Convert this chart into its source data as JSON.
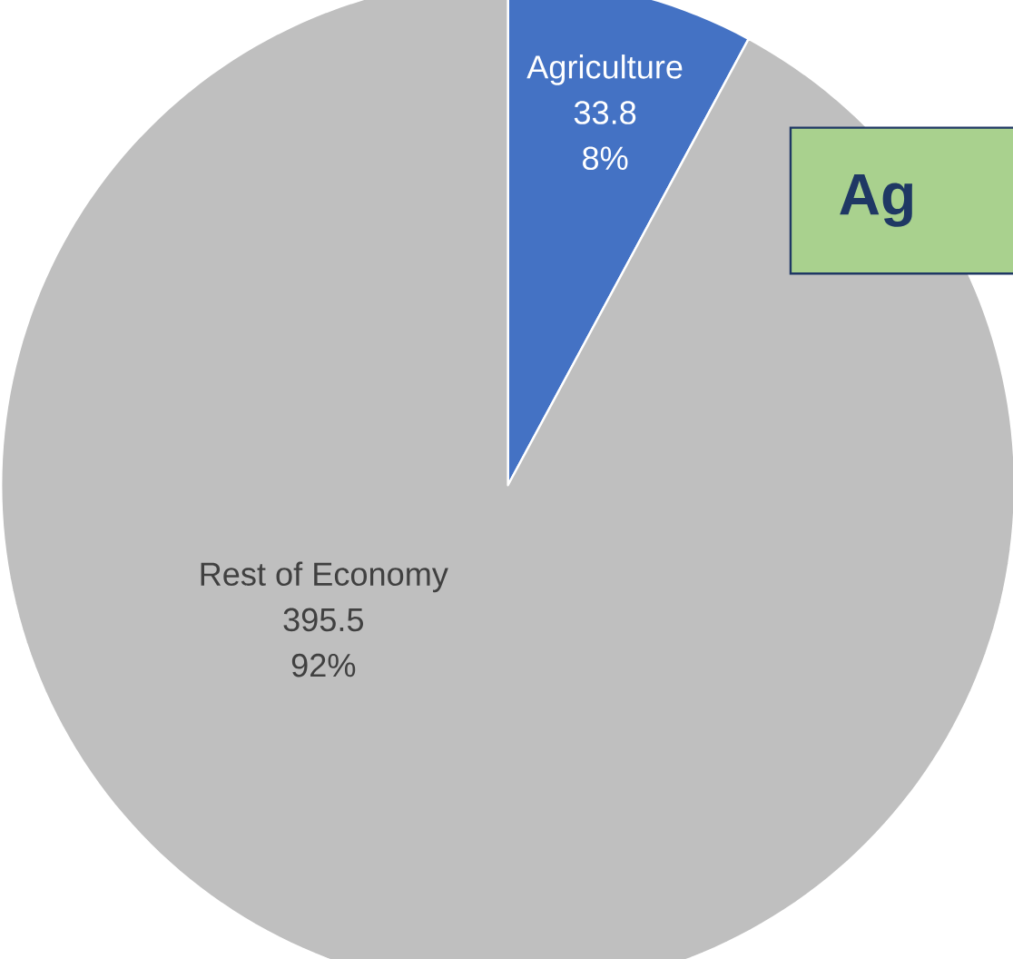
{
  "chart_data": {
    "type": "pie",
    "categories": [
      "Agriculture",
      "Rest of Economy"
    ],
    "values": [
      33.8,
      395.5
    ],
    "colors": [
      "#4472c4",
      "#bfbfbf"
    ],
    "value_labels": [
      "33.8",
      "395.5"
    ],
    "annotations": [
      "8%",
      "92%",
      "Ag"
    ]
  }
}
